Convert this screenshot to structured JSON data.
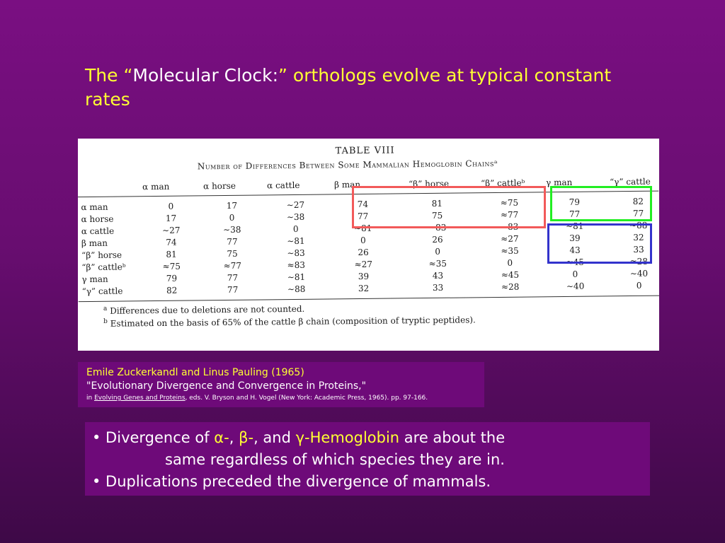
{
  "slide": {
    "title_part1": "The “",
    "title_part2": "Molecular Clock:",
    "title_part3": "” orthologs evolve at typical constant rates"
  },
  "table": {
    "title": "TABLE VIII",
    "subtitle": "Number of Differences Between Some Mammalian Hemoglobin Chainsᵃ",
    "columns": [
      "α man",
      "α horse",
      "α cattle",
      "β man",
      "“β” horse",
      "“β” cattleᵇ",
      "γ man",
      "“γ” cattle"
    ],
    "rows": [
      {
        "label": "α man",
        "values": [
          "0",
          "17",
          "∼27",
          "74",
          "81",
          "≈75",
          "79",
          "82"
        ]
      },
      {
        "label": "α horse",
        "values": [
          "17",
          "0",
          "∼38",
          "77",
          "75",
          "≈77",
          "77",
          "77"
        ]
      },
      {
        "label": "α cattle",
        "values": [
          "∼27",
          "∼38",
          "0",
          "∼81",
          "∼83",
          "∼83",
          "∼81",
          "∼88"
        ]
      },
      {
        "label": "β man",
        "values": [
          "74",
          "77",
          "∼81",
          "0",
          "26",
          "≈27",
          "39",
          "32"
        ]
      },
      {
        "label": "“β” horse",
        "values": [
          "81",
          "75",
          "∼83",
          "26",
          "0",
          "≈35",
          "43",
          "33"
        ]
      },
      {
        "label": "“β” cattleᵇ",
        "values": [
          "≈75",
          "≈77",
          "≈83",
          "≈27",
          "≈35",
          "0",
          "≈45",
          "≈28"
        ]
      },
      {
        "label": "γ man",
        "values": [
          "79",
          "77",
          "∼81",
          "39",
          "43",
          "≈45",
          "0",
          "∼40"
        ]
      },
      {
        "label": "“γ” cattle",
        "values": [
          "82",
          "77",
          "∼88",
          "32",
          "33",
          "≈28",
          "∼40",
          "0"
        ]
      }
    ],
    "footnote_a_marker": "a",
    "footnote_a": "Differences due to deletions are not counted.",
    "footnote_b_marker": "b",
    "footnote_b": "Estimated on the basis of 65% of the cattle β chain (composition of tryptic peptides)."
  },
  "highlights": {
    "red": "#f25a5a",
    "green": "#22ee22",
    "blue": "#3333cc"
  },
  "citation": {
    "authors": "Emile Zuckerkandl and Linus Pauling (1965)",
    "article": "\"Evolutionary Divergence and Convergence in Proteins,\"",
    "in_prefix": "in ",
    "book": "Evolving Genes and Proteins",
    "details": ", eds. V. Bryson and H. Vogel (New York: Academic Press, 1965). pp. 97-166."
  },
  "bullets": {
    "b1_prefix": "• Divergence of ",
    "b1_alpha": "α-",
    "b1_comma1": ", ",
    "b1_beta": "β-",
    "b1_and": ", and ",
    "b1_gamma": "γ-Hemoglobin",
    "b1_suffix": " are about the",
    "b1_line2": "same regardless of which species they are in.",
    "b2": "• Duplications preceded the divergence of mammals."
  },
  "colors": {
    "background": "#7a0f82",
    "accent_yellow": "#ffff33",
    "panel": "#6e0a79"
  }
}
